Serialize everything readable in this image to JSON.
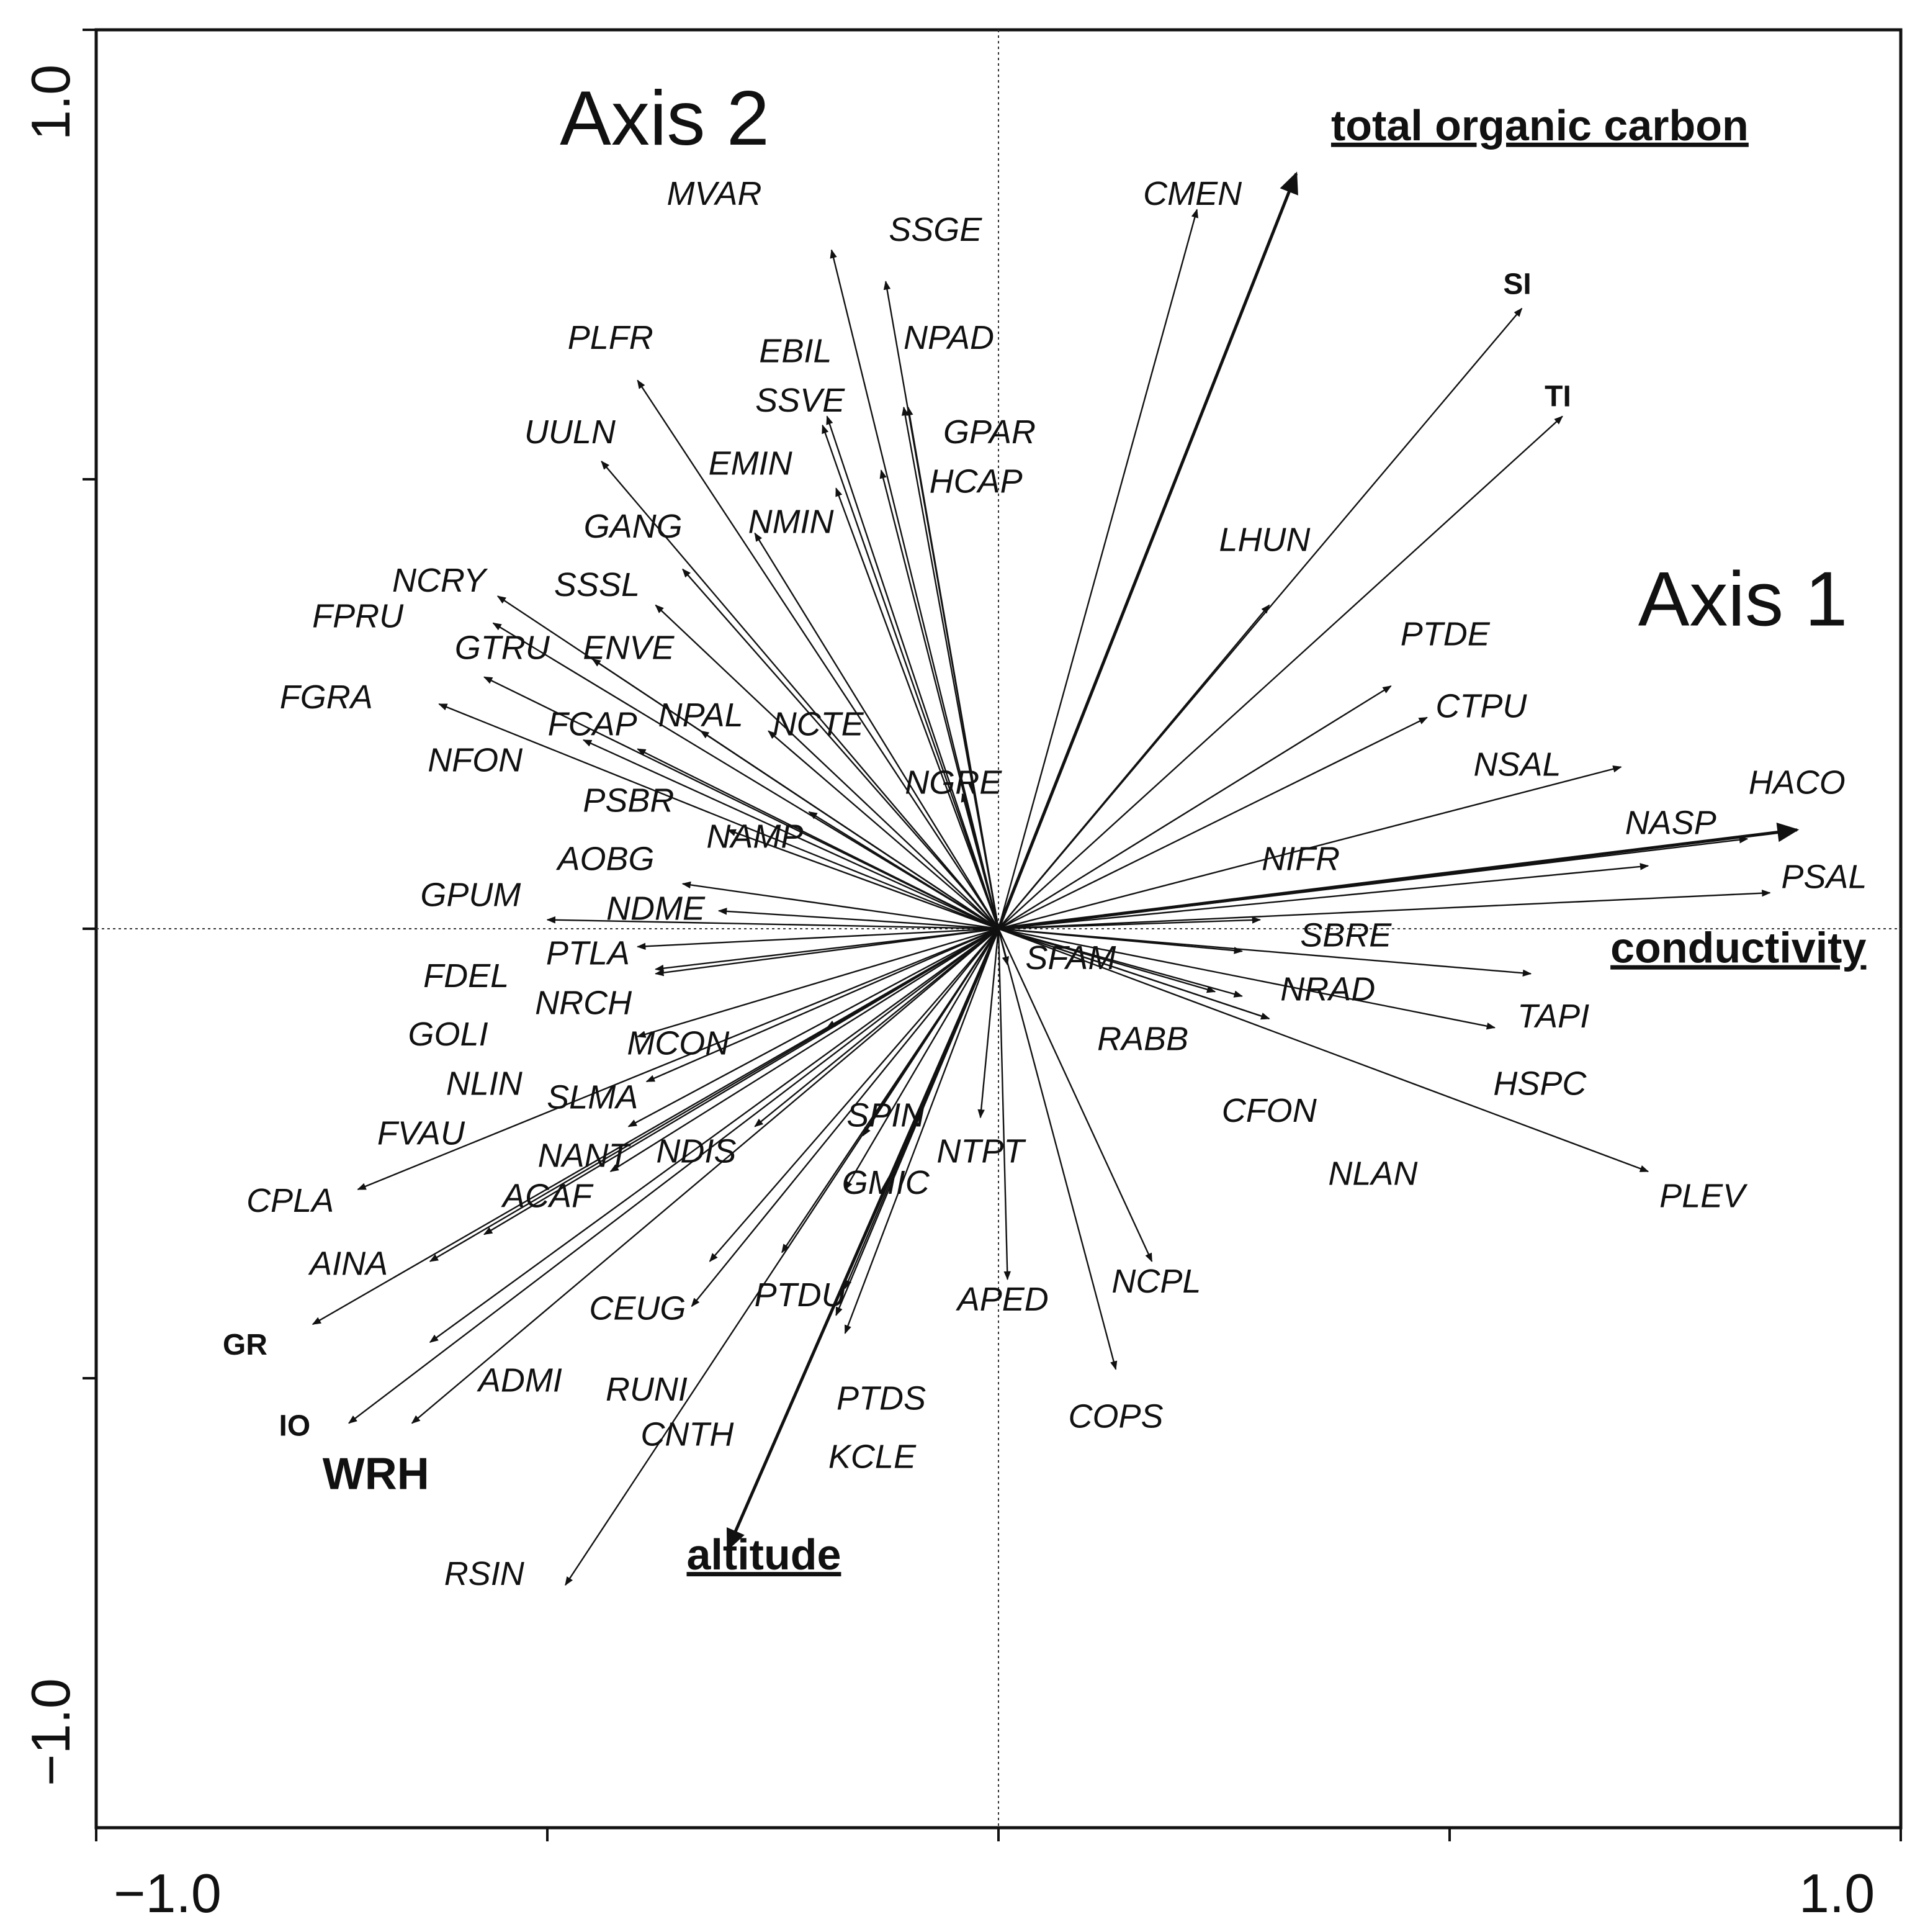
{
  "chart_data": {
    "type": "scatter",
    "subtype": "rda-biplot",
    "title": "",
    "xlabel": "Axis 1",
    "ylabel": "Axis 2",
    "xlim": [
      -1.0,
      1.0
    ],
    "ylim": [
      -1.0,
      1.0
    ],
    "x_tick_labels": [
      "−1.0",
      "1.0"
    ],
    "y_tick_labels": [
      "1.0",
      "−1.0"
    ],
    "grid": false,
    "species": [
      {
        "label": "MVAR",
        "x": -0.185,
        "y": 0.755,
        "lx": -0.315,
        "ly": 0.815
      },
      {
        "label": "SSGE",
        "x": -0.125,
        "y": 0.72,
        "lx": -0.07,
        "ly": 0.775
      },
      {
        "label": "PLFR",
        "x": -0.4,
        "y": 0.61,
        "lx": -0.43,
        "ly": 0.655
      },
      {
        "label": "EBIL",
        "x": -0.19,
        "y": 0.57,
        "lx": -0.225,
        "ly": 0.64
      },
      {
        "label": "NPAD",
        "x": -0.1,
        "y": 0.58,
        "lx": -0.055,
        "ly": 0.655
      },
      {
        "label": "SSVE",
        "x": -0.195,
        "y": 0.56,
        "lx": -0.22,
        "ly": 0.585
      },
      {
        "label": "GPAR",
        "x": -0.105,
        "y": 0.58,
        "lx": -0.01,
        "ly": 0.55
      },
      {
        "label": "UULN",
        "x": -0.44,
        "y": 0.52,
        "lx": -0.475,
        "ly": 0.55
      },
      {
        "label": "EMIN",
        "x": -0.18,
        "y": 0.49,
        "lx": -0.275,
        "ly": 0.515
      },
      {
        "label": "HCAP",
        "x": -0.13,
        "y": 0.51,
        "lx": -0.025,
        "ly": 0.495
      },
      {
        "label": "GANG",
        "x": -0.35,
        "y": 0.4,
        "lx": -0.405,
        "ly": 0.445
      },
      {
        "label": "NMIN",
        "x": -0.27,
        "y": 0.44,
        "lx": -0.23,
        "ly": 0.45
      },
      {
        "label": "LHUN",
        "x": 0.3,
        "y": 0.36,
        "lx": 0.295,
        "ly": 0.43
      },
      {
        "label": "NCRY",
        "x": -0.555,
        "y": 0.37,
        "lx": -0.62,
        "ly": 0.385
      },
      {
        "label": "SSSL",
        "x": -0.38,
        "y": 0.36,
        "lx": -0.445,
        "ly": 0.38
      },
      {
        "label": "FPRU",
        "x": -0.56,
        "y": 0.34,
        "lx": -0.71,
        "ly": 0.345
      },
      {
        "label": "GTRU",
        "x": -0.57,
        "y": 0.28,
        "lx": -0.55,
        "ly": 0.31
      },
      {
        "label": "ENVE",
        "x": -0.45,
        "y": 0.3,
        "lx": -0.41,
        "ly": 0.31
      },
      {
        "label": "FGRA",
        "x": -0.62,
        "y": 0.25,
        "lx": -0.745,
        "ly": 0.255
      },
      {
        "label": "FCAP",
        "x": -0.46,
        "y": 0.21,
        "lx": -0.45,
        "ly": 0.225
      },
      {
        "label": "NPAL",
        "x": -0.33,
        "y": 0.22,
        "lx": -0.33,
        "ly": 0.235
      },
      {
        "label": "NCTE",
        "x": -0.255,
        "y": 0.22,
        "lx": -0.2,
        "ly": 0.225
      },
      {
        "label": "NFON",
        "x": -0.4,
        "y": 0.2,
        "lx": -0.58,
        "ly": 0.185
      },
      {
        "label": "NGRE",
        "x": -0.04,
        "y": 0.15,
        "lx": -0.05,
        "ly": 0.16
      },
      {
        "label": "PSBR",
        "x": -0.21,
        "y": 0.13,
        "lx": -0.41,
        "ly": 0.14
      },
      {
        "label": "NAMP",
        "x": -0.3,
        "y": 0.11,
        "lx": -0.27,
        "ly": 0.1
      },
      {
        "label": "AOBG",
        "x": -0.35,
        "y": 0.05,
        "lx": -0.435,
        "ly": 0.075
      },
      {
        "label": "GPUM",
        "x": -0.5,
        "y": 0.01,
        "lx": -0.585,
        "ly": 0.035
      },
      {
        "label": "NDME",
        "x": -0.31,
        "y": 0.02,
        "lx": -0.38,
        "ly": 0.02
      },
      {
        "label": "PTLA",
        "x": -0.4,
        "y": -0.02,
        "lx": -0.455,
        "ly": -0.03
      },
      {
        "label": "FDEL",
        "x": -0.38,
        "y": -0.05,
        "lx": -0.59,
        "ly": -0.055
      },
      {
        "label": "NRCH",
        "x": -0.38,
        "y": -0.045,
        "lx": -0.46,
        "ly": -0.085
      },
      {
        "label": "GOLI",
        "x": -0.4,
        "y": -0.12,
        "lx": -0.61,
        "ly": -0.12
      },
      {
        "label": "MCON",
        "x": -0.19,
        "y": -0.11,
        "lx": -0.355,
        "ly": -0.13
      },
      {
        "label": "NLIN",
        "x": -0.39,
        "y": -0.17,
        "lx": -0.57,
        "ly": -0.175
      },
      {
        "label": "SLMA",
        "x": -0.41,
        "y": -0.22,
        "lx": -0.45,
        "ly": -0.19
      },
      {
        "label": "FVAU",
        "x": -0.71,
        "y": -0.29,
        "lx": -0.64,
        "ly": -0.23
      },
      {
        "label": "NANT",
        "x": -0.43,
        "y": -0.27,
        "lx": -0.46,
        "ly": -0.255
      },
      {
        "label": "NDIS",
        "x": -0.27,
        "y": -0.22,
        "lx": -0.335,
        "ly": -0.25
      },
      {
        "label": "SPIN",
        "x": -0.15,
        "y": -0.23,
        "lx": -0.125,
        "ly": -0.21
      },
      {
        "label": "NTPT",
        "x": -0.02,
        "y": -0.21,
        "lx": -0.02,
        "ly": -0.25
      },
      {
        "label": "GMIC",
        "x": -0.17,
        "y": -0.29,
        "lx": -0.125,
        "ly": -0.285
      },
      {
        "label": "ACAF",
        "x": -0.63,
        "y": -0.37,
        "lx": -0.5,
        "ly": -0.3
      },
      {
        "label": "CPLA",
        "x": -0.76,
        "y": -0.44,
        "lx": -0.785,
        "ly": -0.305
      },
      {
        "label": "AINA",
        "x": -0.57,
        "y": -0.34,
        "lx": -0.72,
        "ly": -0.375
      },
      {
        "label": "CEUG",
        "x": -0.32,
        "y": -0.37,
        "lx": -0.4,
        "ly": -0.425
      },
      {
        "label": "PTDU",
        "x": -0.17,
        "y": -0.4,
        "lx": -0.22,
        "ly": -0.41
      },
      {
        "label": "APED",
        "x": 0.01,
        "y": -0.39,
        "lx": 0.005,
        "ly": -0.415
      },
      {
        "label": "NCPL",
        "x": 0.17,
        "y": -0.37,
        "lx": 0.175,
        "ly": -0.395
      },
      {
        "label": "ADMI",
        "x": -0.65,
        "y": -0.55,
        "lx": -0.53,
        "ly": -0.505
      },
      {
        "label": "RUNI",
        "x": -0.34,
        "y": -0.42,
        "lx": -0.39,
        "ly": -0.515
      },
      {
        "label": "PTDS",
        "x": -0.17,
        "y": -0.45,
        "lx": -0.13,
        "ly": -0.525
      },
      {
        "label": "COPS",
        "x": 0.13,
        "y": -0.49,
        "lx": 0.13,
        "ly": -0.545
      },
      {
        "label": "CNTH",
        "x": -0.24,
        "y": -0.36,
        "lx": -0.345,
        "ly": -0.565
      },
      {
        "label": "KCLE",
        "x": -0.18,
        "y": -0.43,
        "lx": -0.14,
        "ly": -0.59
      },
      {
        "label": "RSIN",
        "x": -0.48,
        "y": -0.73,
        "lx": -0.57,
        "ly": -0.72
      },
      {
        "label": "CMEN",
        "x": 0.22,
        "y": 0.8,
        "lx": 0.215,
        "ly": 0.815
      },
      {
        "label": "PTDE",
        "x": 0.435,
        "y": 0.27,
        "lx": 0.495,
        "ly": 0.325
      },
      {
        "label": "CTPU",
        "x": 0.475,
        "y": 0.235,
        "lx": 0.535,
        "ly": 0.245
      },
      {
        "label": "NSAL",
        "x": 0.69,
        "y": 0.18,
        "lx": 0.575,
        "ly": 0.18
      },
      {
        "label": "HACO",
        "x": 0.83,
        "y": 0.1,
        "lx": 0.885,
        "ly": 0.16
      },
      {
        "label": "NASP",
        "x": 0.72,
        "y": 0.07,
        "lx": 0.745,
        "ly": 0.115
      },
      {
        "label": "NIFR",
        "x": 0.29,
        "y": 0.01,
        "lx": 0.335,
        "ly": 0.075
      },
      {
        "label": "PSAL",
        "x": 0.855,
        "y": 0.04,
        "lx": 0.915,
        "ly": 0.055
      },
      {
        "label": "SBRE",
        "x": 0.27,
        "y": -0.025,
        "lx": 0.385,
        "ly": -0.01
      },
      {
        "label": "SFAM",
        "x": 0.01,
        "y": -0.04,
        "lx": 0.08,
        "ly": -0.035
      },
      {
        "label": "NRAD",
        "x": 0.27,
        "y": -0.075,
        "lx": 0.365,
        "ly": -0.07
      },
      {
        "label": "TAPI",
        "x": 0.59,
        "y": -0.05,
        "lx": 0.615,
        "ly": -0.1
      },
      {
        "label": "RABB",
        "x": 0.24,
        "y": -0.07,
        "lx": 0.16,
        "ly": -0.125
      },
      {
        "label": "HSPC",
        "x": 0.55,
        "y": -0.11,
        "lx": 0.6,
        "ly": -0.175
      },
      {
        "label": "CFON",
        "x": 0.3,
        "y": -0.1,
        "lx": 0.3,
        "ly": -0.205
      },
      {
        "label": "NLAN",
        "x": 0.3,
        "y": -0.1,
        "lx": 0.415,
        "ly": -0.275
      },
      {
        "label": "PLEV",
        "x": 0.72,
        "y": -0.27,
        "lx": 0.78,
        "ly": -0.3
      }
    ],
    "environmental": [
      {
        "label": "total organic carbon",
        "x": 0.33,
        "y": 0.84,
        "lx": 0.6,
        "ly": 0.89
      },
      {
        "label": "conductivity",
        "x": 0.885,
        "y": 0.11,
        "lx": 0.82,
        "ly": -0.025
      },
      {
        "label": "altitude",
        "x": -0.3,
        "y": -0.69,
        "lx": -0.26,
        "ly": -0.7
      }
    ],
    "samples": [
      {
        "label": "SI",
        "x": 0.58,
        "y": 0.69,
        "lx": 0.575,
        "ly": 0.715
      },
      {
        "label": "TI",
        "x": 0.625,
        "y": 0.57,
        "lx": 0.62,
        "ly": 0.59
      },
      {
        "label": "GR",
        "x": -0.63,
        "y": -0.46,
        "lx": -0.835,
        "ly": -0.465
      },
      {
        "label": "IO",
        "x": -0.72,
        "y": -0.55,
        "lx": -0.78,
        "ly": -0.555
      }
    ],
    "factors": [
      {
        "label": "WRH",
        "x": -0.63,
        "y": -0.46,
        "lx": -0.69,
        "ly": -0.61
      }
    ],
    "axis_labels": [
      {
        "label": "Axis 2",
        "lx": -0.37,
        "ly": 0.895
      },
      {
        "label": "Axis 1",
        "lx": 0.825,
        "ly": 0.36
      }
    ]
  }
}
